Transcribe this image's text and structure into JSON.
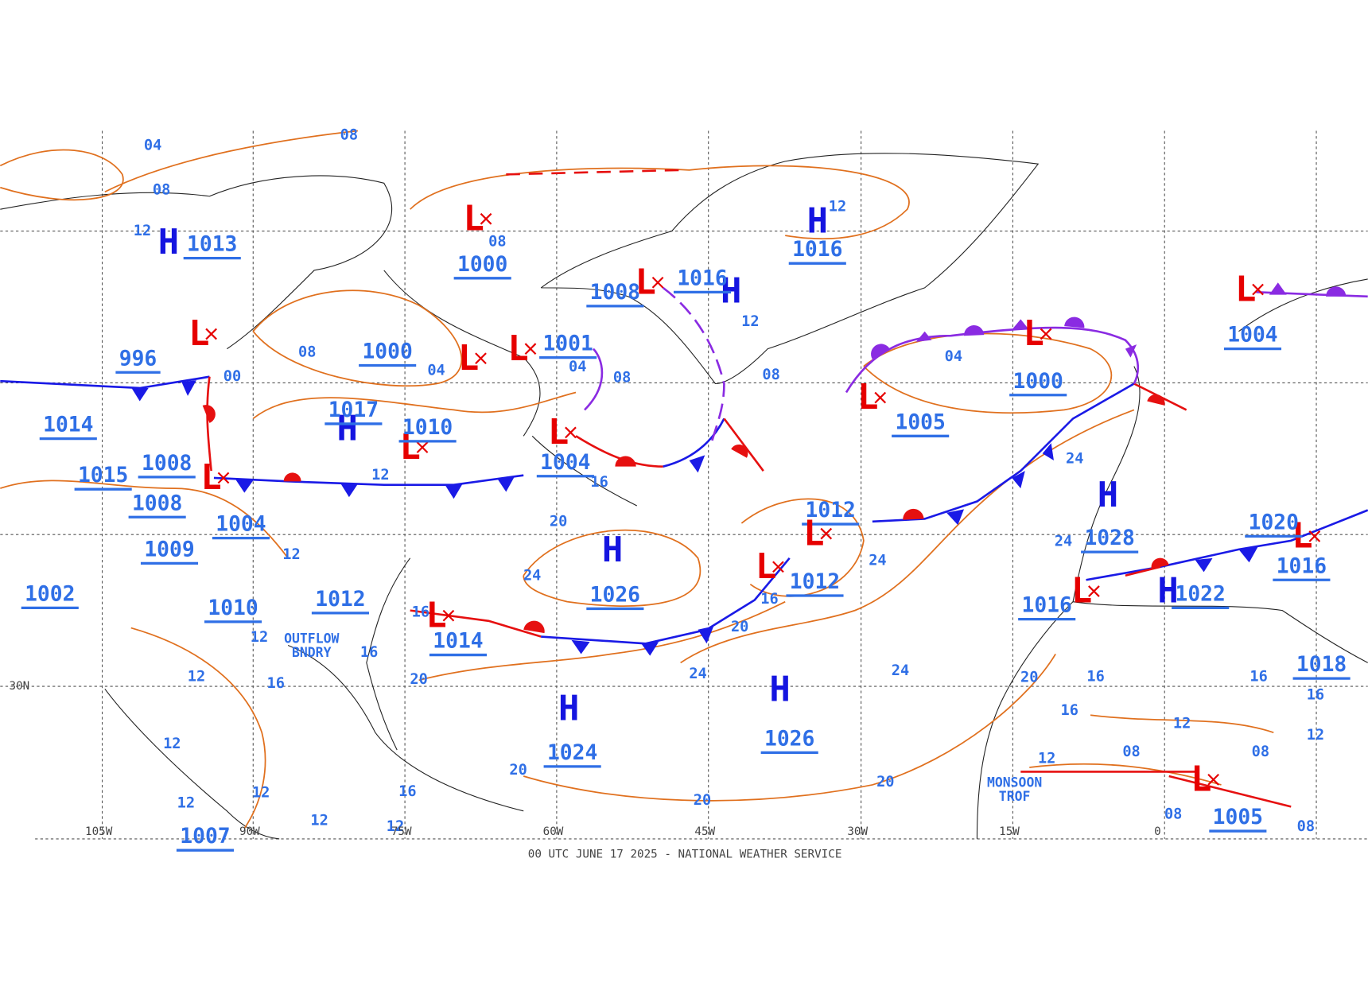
{
  "map": {
    "centers": [
      {
        "symbol": "H",
        "pressure": 1013
      },
      {
        "symbol": "L",
        "pressure": 996
      },
      {
        "symbol": "L",
        "pressure": 1000
      },
      {
        "symbol": "H",
        "pressure": 1016
      },
      {
        "symbol": "L",
        "pressure": 1008
      },
      {
        "symbol": "H",
        "pressure": 1016
      },
      {
        "symbol": "L",
        "pressure": 1000
      },
      {
        "symbol": "L",
        "pressure": 1001
      },
      {
        "symbol": "H",
        "pressure": 1017
      },
      {
        "symbol": "L",
        "pressure": 1010
      },
      {
        "symbol": "L",
        "pressure": 1004
      },
      {
        "symbol": "L",
        "pressure": 1008
      },
      {
        "symbol": "H",
        "pressure": 1026
      },
      {
        "symbol": "L",
        "pressure": 1012
      },
      {
        "symbol": "L",
        "pressure": 1012
      },
      {
        "symbol": "L",
        "pressure": 1005
      },
      {
        "symbol": "L",
        "pressure": 1000
      },
      {
        "symbol": "H",
        "pressure": 1028
      },
      {
        "symbol": "L",
        "pressure": 1004
      },
      {
        "symbol": "L",
        "pressure": 1016
      },
      {
        "symbol": "H",
        "pressure": 1022
      },
      {
        "symbol": "L",
        "pressure": 1016
      },
      {
        "symbol": "H",
        "pressure": 1024
      },
      {
        "symbol": "H",
        "pressure": 1026
      },
      {
        "symbol": "L",
        "pressure": 1005
      },
      {
        "symbol": "L",
        "pressure": 1014
      }
    ],
    "other_pressures": [
      1012,
      1010,
      1009,
      1004,
      1008,
      1015,
      1014,
      1002,
      1007,
      1018,
      1020
    ],
    "isobar_labels": [
      "04",
      "08",
      "08",
      "12",
      "08",
      "12",
      "08",
      "00",
      "04",
      "04",
      "08",
      "12",
      "08",
      "04",
      "12",
      "16",
      "20",
      "24",
      "16",
      "20",
      "20",
      "24",
      "16",
      "24",
      "24",
      "24",
      "24",
      "20",
      "20",
      "20",
      "20",
      "16",
      "16",
      "12",
      "08",
      "08",
      "08",
      "08",
      "16",
      "16",
      "12",
      "12",
      "16",
      "12",
      "12",
      "12",
      "12",
      "12",
      "12",
      "16",
      "12",
      "12",
      "16"
    ],
    "special_labels": [
      [
        "OUTFLOW",
        "BNDRY"
      ],
      [
        "MONSOON",
        "TROF"
      ]
    ],
    "longitude_labels": [
      "105W",
      "90W",
      "75W",
      "60W",
      "45W",
      "30W",
      "15W",
      "0"
    ],
    "latitude_labels": [
      "30N"
    ],
    "footer": "00 UTC JUNE 17 2025 - NATIONAL WEATHER SERVICE"
  }
}
